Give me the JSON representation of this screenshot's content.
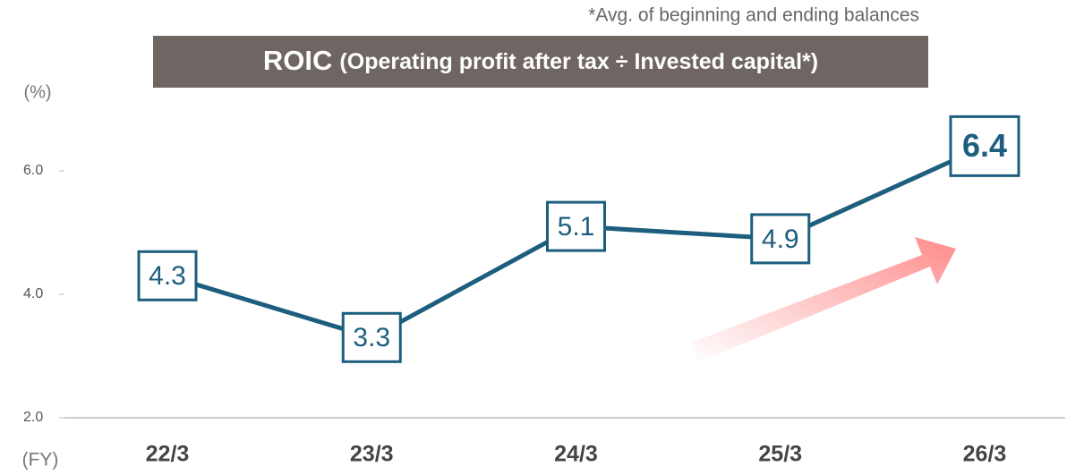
{
  "chart_data": {
    "type": "line",
    "note": "*Avg. of beginning and ending balances",
    "title": "ROIC",
    "subtitle": "(Operating profit after tax ÷ Invested capital*)",
    "y_label": "(%)",
    "x_label": "(FY)",
    "categories": [
      "22/3",
      "23/3",
      "24/3",
      "25/3",
      "26/3"
    ],
    "series": [
      {
        "name": "ROIC",
        "color": "#1d5e7e",
        "values": [
          4.3,
          3.3,
          5.1,
          4.9,
          6.4
        ]
      }
    ],
    "ylim": [
      2,
      7
    ],
    "yticks": [
      {
        "value": 2,
        "label": "2.0"
      },
      {
        "value": 4,
        "label": "4.0"
      },
      {
        "value": 6,
        "label": "6.0"
      }
    ],
    "grid": false,
    "legend": false
  }
}
